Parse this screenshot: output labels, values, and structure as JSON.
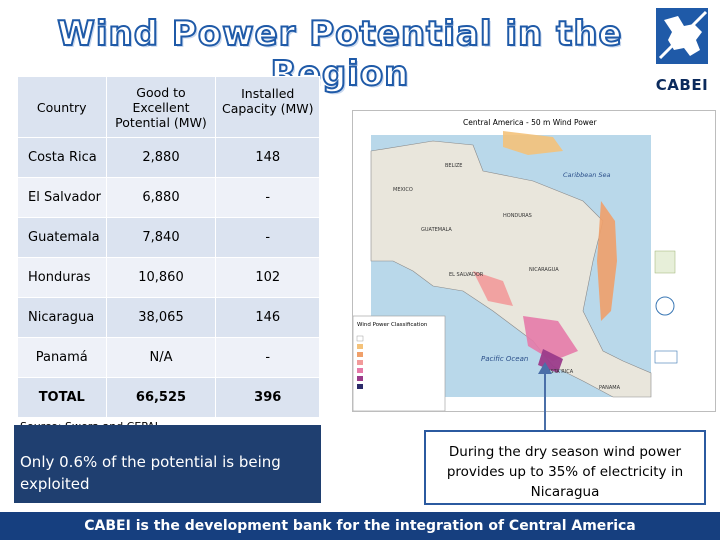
{
  "slide": {
    "title": "Wind Power Potential in the Region",
    "logo_text": "CABEI"
  },
  "table": {
    "headers": {
      "country": "Country",
      "potential": "Good to Excellent Potential (MW)",
      "installed": "Installed Capacity (MW)"
    },
    "rows": [
      {
        "country": "Costa Rica",
        "potential": "2,880",
        "installed": "148"
      },
      {
        "country": "El Salvador",
        "potential": "6,880",
        "installed": "-"
      },
      {
        "country": "Guatemala",
        "potential": "7,840",
        "installed": "-"
      },
      {
        "country": "Honduras",
        "potential": "10,860",
        "installed": "102"
      },
      {
        "country": "Nicaragua",
        "potential": "38,065",
        "installed": "146"
      },
      {
        "country": "Panamá",
        "potential": "N/A",
        "installed": "-"
      }
    ],
    "total": {
      "country": "TOTAL",
      "potential": "66,525",
      "installed": "396"
    }
  },
  "source": "Source: Swera and CEPAL",
  "map": {
    "title": "Central America - 50 m Wind Power",
    "labels": {
      "caribbean": "Caribbean Sea",
      "pacific": "Pacific Ocean",
      "belize": "BELIZE",
      "mexico": "MEXICO",
      "honduras": "HONDURAS",
      "guatemala": "GUATEMALA",
      "el_salvador": "EL SALVADOR",
      "nicaragua": "NICARAGUA",
      "costa_rica": "COSTA RICA",
      "panama": "PANAMA",
      "legend_title": "Wind Power Classification"
    }
  },
  "notes": {
    "left": "Only 0.6% of the potential is being exploited",
    "right": "During the dry season wind power provides up to 35% of electricity in Nicaragua"
  },
  "footer": "CABEI is the development bank for the integration of Central America"
}
